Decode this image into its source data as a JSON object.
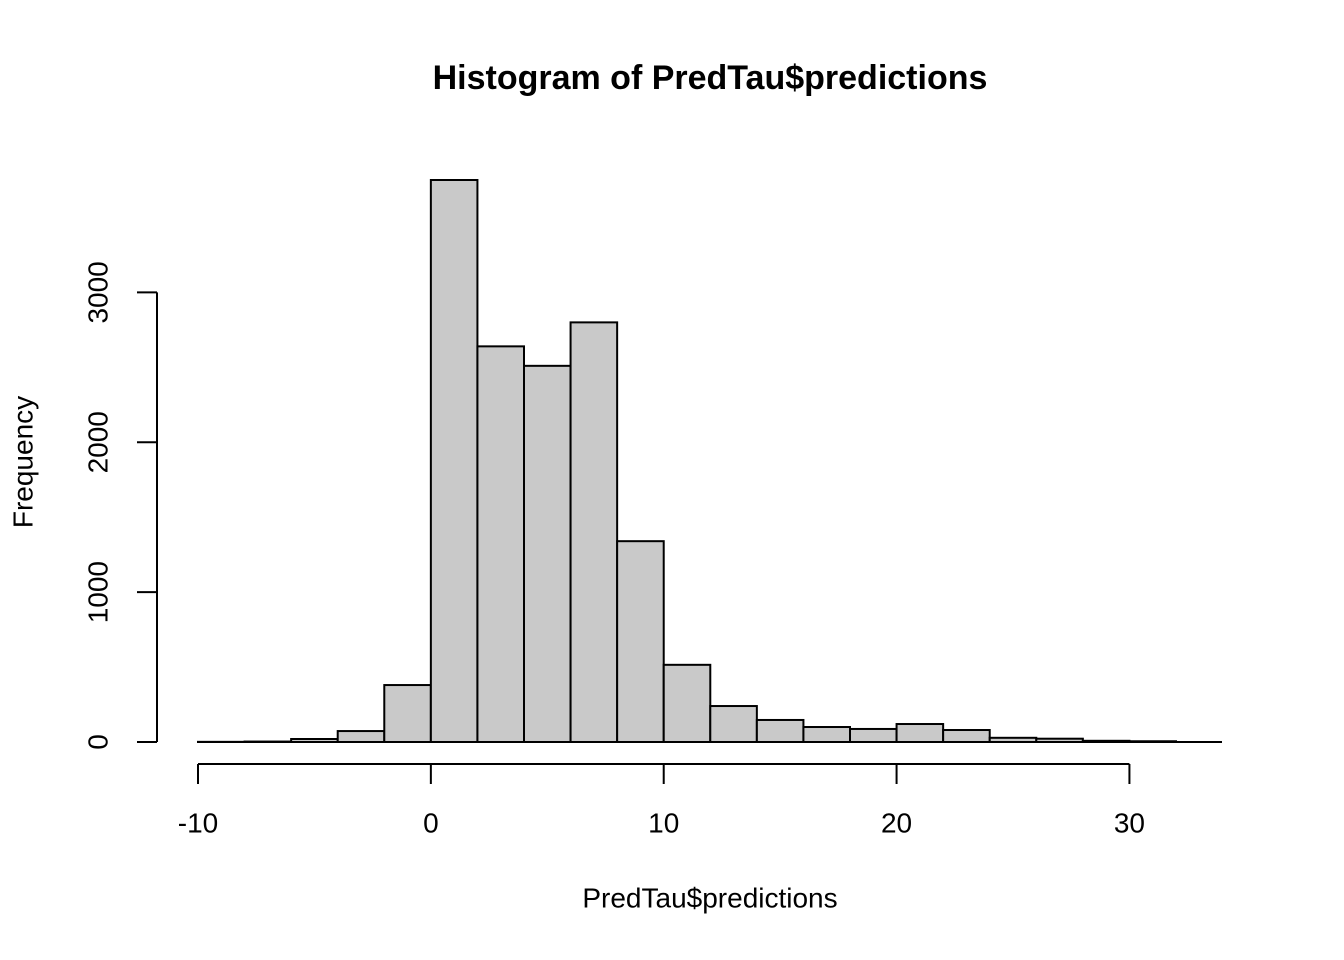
{
  "chart_data": {
    "type": "histogram",
    "title": "Histogram of PredTau$predictions",
    "x_label": "PredTau$predictions",
    "y_label": "Frequency",
    "bins": [
      -10,
      -8,
      -6,
      -4,
      -2,
      0,
      2,
      4,
      6,
      8,
      10,
      12,
      14,
      16,
      18,
      20,
      22,
      24,
      26,
      28,
      30,
      32
    ],
    "values": [
      1,
      3,
      20,
      73,
      380,
      3750,
      2640,
      2510,
      2800,
      1340,
      515,
      240,
      147,
      100,
      87,
      120,
      80,
      28,
      22,
      8,
      5
    ],
    "color": "#c9c9c9",
    "xlim": [
      -10,
      32
    ],
    "xticks": [
      -10,
      0,
      10,
      20,
      30
    ],
    "ylim": [
      0,
      3750
    ],
    "yticks": [
      0,
      1000,
      2000,
      3000
    ]
  }
}
